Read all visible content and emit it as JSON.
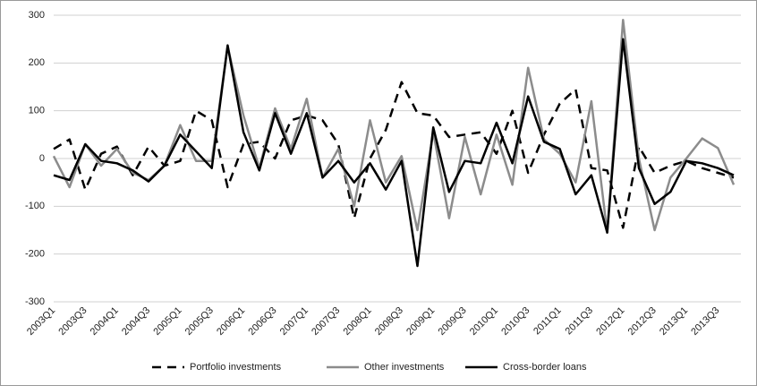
{
  "chart_data": {
    "type": "line",
    "categories": [
      "2003Q1",
      null,
      "2003Q3",
      null,
      "2004Q1",
      null,
      "2004Q3",
      null,
      "2005Q1",
      null,
      "2005Q3",
      null,
      "2006Q1",
      null,
      "2006Q3",
      null,
      "2007Q1",
      null,
      "2007Q3",
      null,
      "2008Q1",
      null,
      "2008Q3",
      null,
      "2009Q1",
      null,
      "2009Q3",
      null,
      "2010Q1",
      null,
      "2010Q3",
      null,
      "2011Q1",
      null,
      "2011Q3",
      null,
      "2012Q1",
      null,
      "2012Q3",
      null,
      "2013Q1",
      null,
      "2013Q3",
      null
    ],
    "series": [
      {
        "name": "Portfolio investments",
        "color": "#000000",
        "dashed": true,
        "values": [
          20,
          40,
          -65,
          10,
          25,
          -35,
          25,
          -15,
          -5,
          100,
          80,
          -60,
          30,
          35,
          0,
          80,
          90,
          80,
          30,
          -125,
          0,
          60,
          160,
          95,
          90,
          45,
          50,
          55,
          10,
          100,
          -30,
          50,
          115,
          145,
          -20,
          -25,
          -145,
          25,
          -30,
          -15,
          -5,
          -20,
          -30,
          -40
        ]
      },
      {
        "name": "Other investments",
        "color": "#8c8c8c",
        "dashed": false,
        "values": [
          5,
          -60,
          30,
          -15,
          20,
          -30,
          -45,
          -15,
          70,
          -5,
          -5,
          235,
          90,
          -20,
          105,
          20,
          125,
          -40,
          20,
          -100,
          80,
          -50,
          5,
          -150,
          55,
          -125,
          45,
          -75,
          50,
          -55,
          190,
          40,
          10,
          -50,
          120,
          -155,
          290,
          0,
          -150,
          -40,
          0,
          42,
          22,
          -55
        ]
      },
      {
        "name": "Cross-border loans",
        "color": "#000000",
        "dashed": false,
        "values": [
          -35,
          -45,
          30,
          -5,
          -10,
          -25,
          -48,
          -15,
          50,
          15,
          -20,
          237,
          55,
          -25,
          95,
          10,
          95,
          -40,
          -5,
          -50,
          -10,
          -65,
          -5,
          -225,
          65,
          -70,
          -5,
          -10,
          75,
          -10,
          130,
          35,
          20,
          -75,
          -35,
          -155,
          250,
          -20,
          -95,
          -70,
          -5,
          -10,
          -20,
          -35
        ]
      }
    ],
    "ylim": [
      -300,
      300
    ],
    "yticks": [
      -300,
      -200,
      -100,
      0,
      100,
      200,
      300
    ],
    "grid": true,
    "legend": "bottom"
  }
}
